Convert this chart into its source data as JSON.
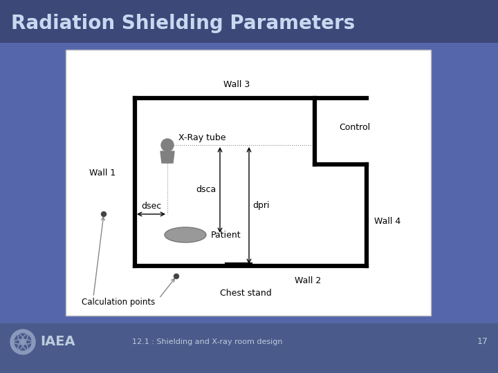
{
  "title": "Radiation Shielding Parameters",
  "title_color": "#C8D8F0",
  "header_bg": "#3B4878",
  "footer_bg": "#4A5A8A",
  "slide_bg": "#5566AA",
  "diagram_bg": "#FFFFFF",
  "footer_text": "12.1 : Shielding and X-ray room design",
  "footer_page": "17",
  "iaea_text": "IAEA"
}
